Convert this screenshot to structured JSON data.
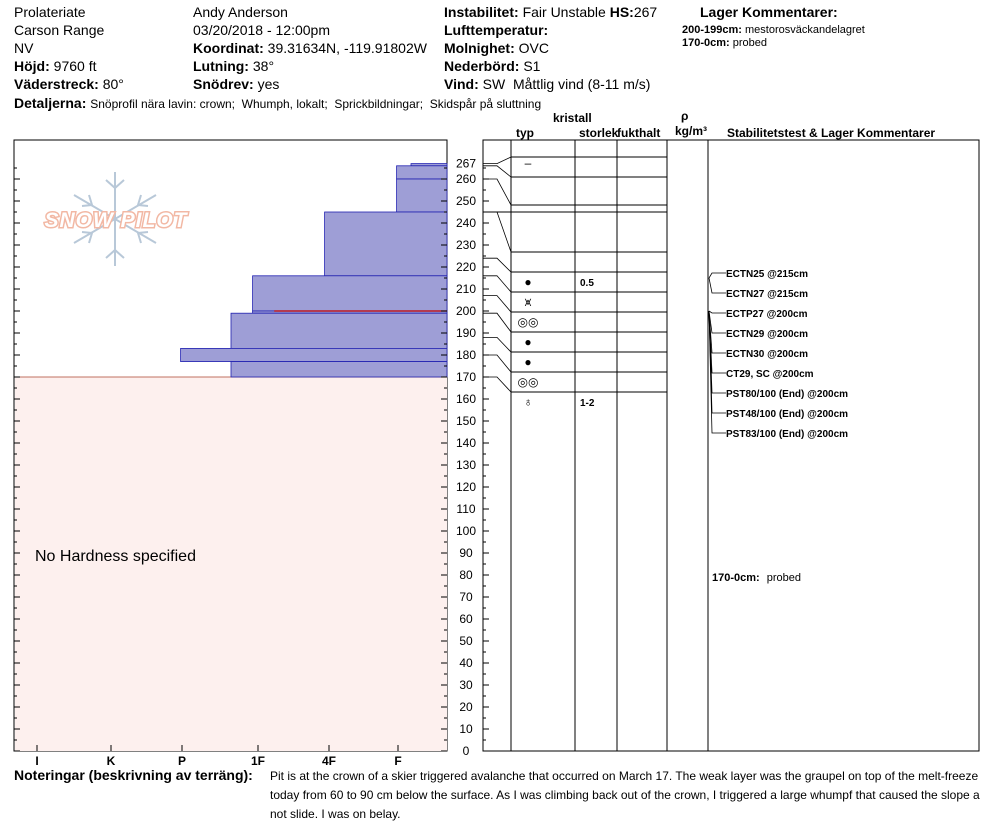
{
  "header": {
    "location": "Prolateriate",
    "range": "Carson Range",
    "state": "NV",
    "elevation_label": "Höjd:",
    "elevation_value": "9760 ft",
    "aspect_label": "Väderstreck:",
    "aspect_value": "80°",
    "observer": "Andy Anderson",
    "datetime": "03/20/2018 - 12:00pm",
    "coord_label": "Koordinat:",
    "coord_value": "39.31634N, -119.91802W",
    "slope_label": "Lutning:",
    "slope_value": "38°",
    "drift_label": "Snödrev:",
    "drift_value": "yes",
    "instability_label": "Instabilitet:",
    "instability_value": "Fair Unstable",
    "hs_label": "HS:",
    "hs_value": "267",
    "airtemp_label": "Lufttemperatur:",
    "sky_label": "Molnighet:",
    "sky_value": "OVC",
    "precip_label": "Nederbörd:",
    "precip_value": "S1",
    "wind_label": "Vind:",
    "wind_value": "SW  Måttlig vind (8-11 m/s)",
    "layer_comments_title": "Lager Kommentarer:",
    "layer_comments": [
      {
        "label": "200-199cm:",
        "text": "mestorosväckandelagret"
      },
      {
        "label": "170-0cm:",
        "text": "probed"
      }
    ],
    "details_label": "Detaljerna:",
    "details_value": "Snöprofil nära lavin: crown;  Whumph, lokalt;  Sprickbildningar;  Skidspår på sluttning"
  },
  "table_headers": {
    "crystal": "kristall",
    "type": "typ",
    "size": "storlek",
    "moisture": "fukthalt",
    "rho": "ρ",
    "density_unit": "kg/m³",
    "stability": "Stabilitetstest & Lager Kommentarer"
  },
  "logo_text": "SNOW PILOT",
  "no_hardness": "No Hardness specified",
  "stability_tests": [
    "ECTN25 @215cm",
    "ECTN27 @215cm",
    "ECTP27 @200cm",
    "ECTN29 @200cm",
    "ECTN30 @200cm",
    "CT29, SC @200cm",
    "PST80/100 (End) @200cm",
    "PST48/100 (End) @200cm",
    "PST83/100 (End) @200cm"
  ],
  "bottom_comment": {
    "label": "170-0cm:",
    "text": "probed"
  },
  "notes_label": "Noteringar (beskrivning av terräng):",
  "notes_text": "Pit is at the crown of a skier triggered avalanche that occurred on March 17. The weak layer was the graupel on top of the melt-freeze today from 60 to 90 cm below the surface. As I was climbing back out of the crown, I triggered a large whumpf that caused the slope a not slide. I was on belay.",
  "colors": {
    "hardness_fill": "#9e9ed6",
    "hardness_stroke": "#2020b0",
    "probed_fill": "#fdf0ee",
    "red_line": "#c00000"
  },
  "chart_data": {
    "type": "snow-profile",
    "y_ticks": [
      267,
      260,
      250,
      240,
      230,
      220,
      210,
      200,
      190,
      180,
      170,
      160,
      150,
      140,
      130,
      120,
      110,
      100,
      90,
      80,
      70,
      60,
      50,
      40,
      30,
      20,
      10,
      0
    ],
    "hardness_ticks": [
      "I",
      "K",
      "P",
      "1F",
      "4F",
      "F"
    ],
    "ylim": [
      0,
      270
    ],
    "hardness_layers": [
      {
        "top": 267,
        "bottom": 266,
        "hardness": 0.5
      },
      {
        "top": 266,
        "bottom": 260,
        "hardness": 0.7
      },
      {
        "top": 260,
        "bottom": 245,
        "hardness": 0.7
      },
      {
        "top": 245,
        "bottom": 216,
        "hardness": 1.7
      },
      {
        "top": 216,
        "bottom": 200,
        "hardness": 2.7
      },
      {
        "top": 200,
        "bottom": 199,
        "hardness": 2.7
      },
      {
        "top": 199,
        "bottom": 183,
        "hardness": 3.0
      },
      {
        "top": 183,
        "bottom": 177,
        "hardness": 3.7
      },
      {
        "top": 177,
        "bottom": 170,
        "hardness": 3.0
      }
    ],
    "probed_range": [
      0,
      170
    ],
    "grain_layers": [
      {
        "top": 267,
        "bottom": 266,
        "symbol": "–",
        "size": ""
      },
      {
        "top": 266,
        "bottom": 260,
        "symbol": "",
        "size": ""
      },
      {
        "top": 260,
        "bottom": 245,
        "symbol": "",
        "size": ""
      },
      {
        "top": 245,
        "bottom": 224,
        "symbol": "",
        "size": ""
      },
      {
        "top": 224,
        "bottom": 216,
        "symbol": "●",
        "size": "0.5"
      },
      {
        "top": 216,
        "bottom": 207,
        "symbol": "⩙",
        "size": ""
      },
      {
        "top": 207,
        "bottom": 199,
        "symbol": "◎◎",
        "size": ""
      },
      {
        "top": 199,
        "bottom": 188,
        "symbol": "●",
        "size": ""
      },
      {
        "top": 188,
        "bottom": 180,
        "symbol": "●",
        "size": ""
      },
      {
        "top": 180,
        "bottom": 170,
        "symbol": "◎◎",
        "size": ""
      },
      {
        "top": 170,
        "bottom": 161,
        "symbol": "♁",
        "size": "1-2"
      }
    ]
  }
}
